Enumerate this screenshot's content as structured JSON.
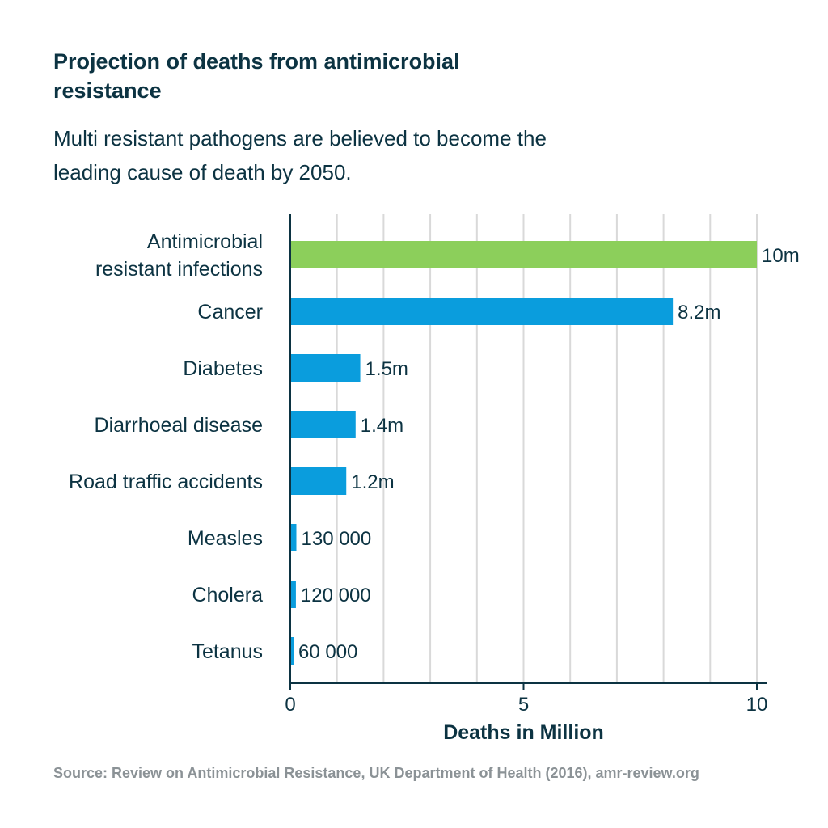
{
  "header": {
    "title": "Projection of deaths from antimicrobial resistance",
    "subtitle": "Multi resistant pathogens are believed to become the leading cause of death by 2050."
  },
  "source": {
    "text": "Source: Review on Antimicrobial Resistance, UK Department of Health (2016), amr-review.org"
  },
  "colors": {
    "highlight": "#8ccf5b",
    "bar": "#0a9ddd",
    "grid": "#d9d9d9",
    "axis": "#0c3342",
    "text": "#0c3342",
    "source_text": "#8b9296"
  },
  "chart_data": {
    "type": "bar",
    "orientation": "horizontal",
    "title": "Projection of deaths from antimicrobial resistance",
    "subtitle": "Multi resistant pathogens are believed to become the leading cause of death by 2050.",
    "xlabel": "Deaths in Million",
    "ylabel": "",
    "xlim": [
      0,
      10
    ],
    "grid": true,
    "x_ticks": [
      0,
      5,
      10
    ],
    "x_tick_labels": [
      "0",
      "5",
      "10"
    ],
    "categories": [
      [
        "Antimicrobial",
        "resistant infections"
      ],
      [
        "Cancer"
      ],
      [
        "Diabetes"
      ],
      [
        "Diarrhoeal disease"
      ],
      [
        "Road traffic accidents"
      ],
      [
        "Measles"
      ],
      [
        "Cholera"
      ],
      [
        "Tetanus"
      ]
    ],
    "values": [
      10,
      8.2,
      1.5,
      1.4,
      1.2,
      0.13,
      0.12,
      0.06
    ],
    "value_labels": [
      "10m",
      "8.2m",
      "1.5m",
      "1.4m",
      "1.2m",
      "130 000",
      "120 000",
      "60 000"
    ],
    "highlight_index": 0
  }
}
